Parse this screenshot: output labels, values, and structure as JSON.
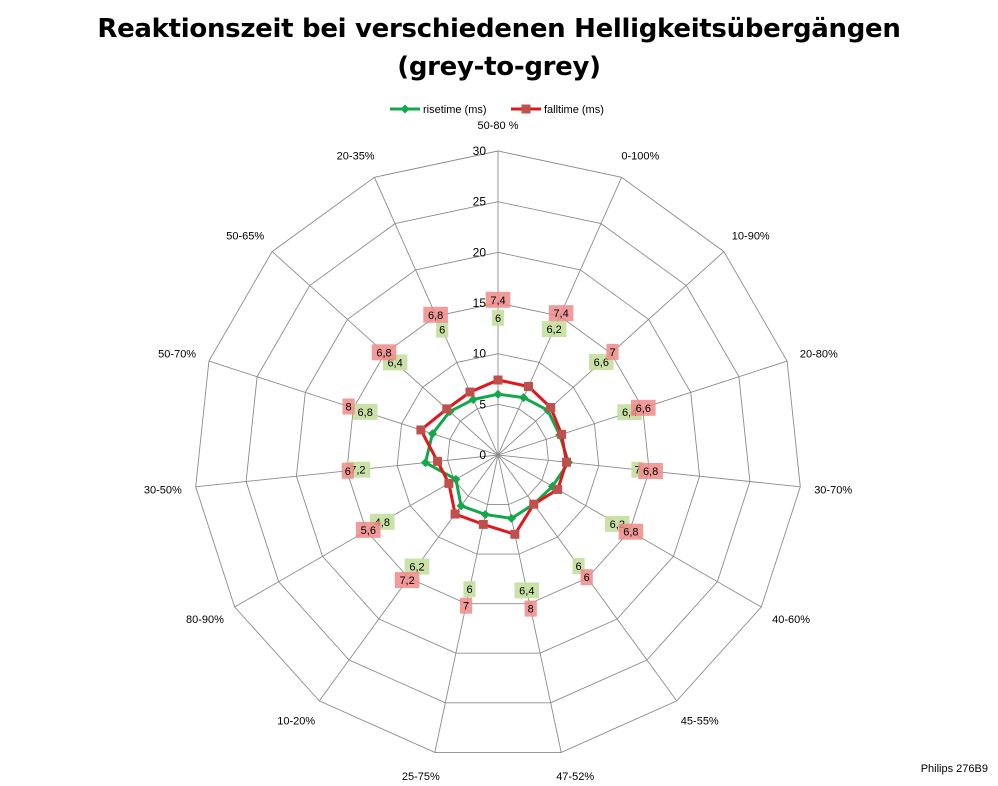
{
  "chart_data": {
    "type": "radar",
    "title": [
      "Reaktionszeit bei verschiedenen Helligkeitsübergängen",
      "(grey-to-grey)"
    ],
    "categories": [
      "50-80 %",
      "0-100%",
      "10-90%",
      "20-80%",
      "30-70%",
      "40-60%",
      "45-55%",
      "47-52%",
      "25-75%",
      "10-20%",
      "80-90%",
      "30-50%",
      "50-70%",
      "50-65%",
      "20-35%"
    ],
    "axis_ticks": [
      "0",
      "5",
      "10",
      "15",
      "20",
      "25",
      "30"
    ],
    "rmax": 30,
    "series": [
      {
        "name": "risetime (ms)",
        "color": "#11a84a",
        "label_bg": "#c4df9f",
        "values": [
          6,
          6.2,
          6.6,
          6.4,
          7,
          6.2,
          6,
          6.4,
          6,
          6.2,
          4.8,
          7.2,
          6.8,
          6.4,
          6
        ]
      },
      {
        "name": "falltime (ms)",
        "color": "#e2161c",
        "label_bg": "#f08a8a",
        "values": [
          7.4,
          7.4,
          7,
          6.6,
          6.8,
          6.8,
          6,
          8,
          7,
          7.2,
          5.6,
          6,
          8,
          6.8,
          6.8
        ]
      }
    ],
    "labels": {
      "risetime": [
        "6",
        "6,2",
        "6,6",
        "6,4",
        "7",
        "6,2",
        "6",
        "6,4",
        "6",
        "6,2",
        "4,8",
        "7,2",
        "6,8",
        "6,4",
        "6"
      ],
      "falltime": [
        "7,4",
        "7,4",
        "7",
        "6,6",
        "6,8",
        "6,8",
        "6",
        "8",
        "7",
        "7,2",
        "5,6",
        "6",
        "8",
        "6,8",
        "6,8"
      ]
    },
    "legend_position": "top",
    "grid": true
  },
  "legend": {
    "items": [
      "risetime (ms)",
      "falltime (ms)"
    ]
  },
  "credit": "Philips 276B9"
}
